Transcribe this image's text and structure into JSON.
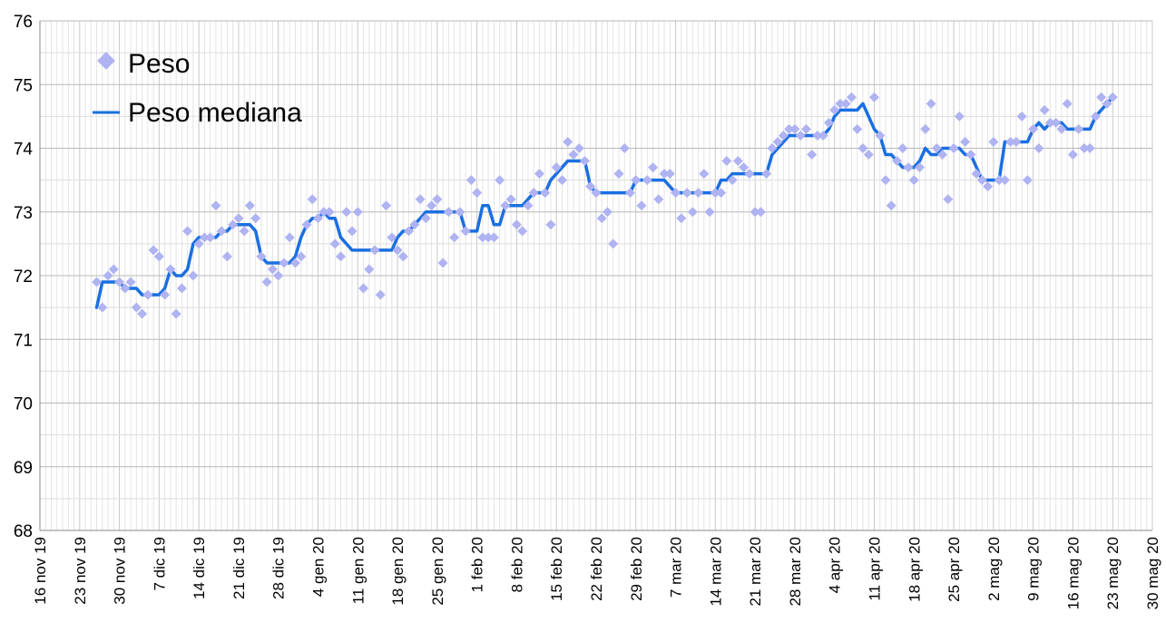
{
  "chart_data": {
    "type": "line",
    "title": "",
    "xlabel": "",
    "ylabel": "",
    "ylim": [
      68,
      76
    ],
    "yticks": [
      "68",
      "69",
      "70",
      "71",
      "72",
      "73",
      "74",
      "75",
      "76"
    ],
    "xlim": [
      "2019-11-16",
      "2020-05-30"
    ],
    "xticks": [
      "16 nov 19",
      "23 nov 19",
      "30 nov 19",
      "7 dic 19",
      "14 dic 19",
      "21 dic 19",
      "28 dic 19",
      "4 gen 20",
      "11 gen 20",
      "18 gen 20",
      "25 gen 20",
      "1 feb 20",
      "8 feb 20",
      "15 feb 20",
      "22 feb 20",
      "29 feb 20",
      "7 mar 20",
      "14 mar 20",
      "21 mar 20",
      "28 mar 20",
      "4 apr 20",
      "11 apr 20",
      "18 apr 20",
      "25 apr 20",
      "2 mag 20",
      "9 mag 20",
      "16 mag 20",
      "23 mag 20",
      "30 mag 20"
    ],
    "grid": true,
    "legend_position": "top-left",
    "series": [
      {
        "name": "Peso",
        "kind": "scatter",
        "marker": "diamond",
        "color": "#b0b3f2",
        "x": [
          "2019-11-26",
          "2019-11-27",
          "2019-11-28",
          "2019-11-29",
          "2019-11-30",
          "2019-12-01",
          "2019-12-02",
          "2019-12-03",
          "2019-12-04",
          "2019-12-05",
          "2019-12-06",
          "2019-12-07",
          "2019-12-08",
          "2019-12-09",
          "2019-12-10",
          "2019-12-11",
          "2019-12-12",
          "2019-12-13",
          "2019-12-14",
          "2019-12-15",
          "2019-12-16",
          "2019-12-17",
          "2019-12-18",
          "2019-12-19",
          "2019-12-20",
          "2019-12-21",
          "2019-12-22",
          "2019-12-23",
          "2019-12-24",
          "2019-12-25",
          "2019-12-26",
          "2019-12-27",
          "2019-12-28",
          "2019-12-29",
          "2019-12-30",
          "2019-12-31",
          "2020-01-01",
          "2020-01-02",
          "2020-01-03",
          "2020-01-04",
          "2020-01-05",
          "2020-01-06",
          "2020-01-07",
          "2020-01-08",
          "2020-01-09",
          "2020-01-10",
          "2020-01-11",
          "2020-01-12",
          "2020-01-13",
          "2020-01-14",
          "2020-01-15",
          "2020-01-16",
          "2020-01-17",
          "2020-01-18",
          "2020-01-19",
          "2020-01-20",
          "2020-01-21",
          "2020-01-22",
          "2020-01-23",
          "2020-01-24",
          "2020-01-25",
          "2020-01-26",
          "2020-01-27",
          "2020-01-28",
          "2020-01-29",
          "2020-01-30",
          "2020-01-31",
          "2020-02-01",
          "2020-02-02",
          "2020-02-03",
          "2020-02-04",
          "2020-02-05",
          "2020-02-06",
          "2020-02-07",
          "2020-02-08",
          "2020-02-09",
          "2020-02-10",
          "2020-02-11",
          "2020-02-12",
          "2020-02-13",
          "2020-02-14",
          "2020-02-15",
          "2020-02-16",
          "2020-02-17",
          "2020-02-18",
          "2020-02-19",
          "2020-02-20",
          "2020-02-21",
          "2020-02-22",
          "2020-02-23",
          "2020-02-24",
          "2020-02-25",
          "2020-02-26",
          "2020-02-27",
          "2020-02-28",
          "2020-02-29",
          "2020-03-01",
          "2020-03-02",
          "2020-03-03",
          "2020-03-04",
          "2020-03-05",
          "2020-03-06",
          "2020-03-07",
          "2020-03-08",
          "2020-03-09",
          "2020-03-10",
          "2020-03-11",
          "2020-03-12",
          "2020-03-13",
          "2020-03-14",
          "2020-03-15",
          "2020-03-16",
          "2020-03-17",
          "2020-03-18",
          "2020-03-19",
          "2020-03-20",
          "2020-03-21",
          "2020-03-22",
          "2020-03-23",
          "2020-03-24",
          "2020-03-25",
          "2020-03-26",
          "2020-03-27",
          "2020-03-28",
          "2020-03-29",
          "2020-03-30",
          "2020-03-31",
          "2020-04-01",
          "2020-04-02",
          "2020-04-03",
          "2020-04-04",
          "2020-04-05",
          "2020-04-06",
          "2020-04-07",
          "2020-04-08",
          "2020-04-09",
          "2020-04-10",
          "2020-04-11",
          "2020-04-12",
          "2020-04-13",
          "2020-04-14",
          "2020-04-15",
          "2020-04-16",
          "2020-04-17",
          "2020-04-18",
          "2020-04-19",
          "2020-04-20",
          "2020-04-21",
          "2020-04-22",
          "2020-04-23",
          "2020-04-24",
          "2020-04-25",
          "2020-04-26",
          "2020-04-27",
          "2020-04-28",
          "2020-04-29",
          "2020-04-30",
          "2020-05-01",
          "2020-05-02",
          "2020-05-03",
          "2020-05-04",
          "2020-05-05",
          "2020-05-06",
          "2020-05-07",
          "2020-05-08",
          "2020-05-09",
          "2020-05-10",
          "2020-05-11",
          "2020-05-12",
          "2020-05-13",
          "2020-05-14",
          "2020-05-15",
          "2020-05-16",
          "2020-05-17",
          "2020-05-18",
          "2020-05-19",
          "2020-05-20",
          "2020-05-21",
          "2020-05-22",
          "2020-05-23"
        ],
        "values": [
          71.9,
          71.5,
          72.0,
          72.1,
          71.9,
          71.8,
          71.9,
          71.5,
          71.4,
          71.7,
          72.4,
          72.3,
          71.7,
          72.1,
          71.4,
          71.8,
          72.7,
          72.0,
          72.5,
          72.6,
          72.6,
          73.1,
          72.7,
          72.3,
          72.8,
          72.9,
          72.7,
          73.1,
          72.9,
          72.3,
          71.9,
          72.1,
          72.0,
          72.2,
          72.6,
          72.2,
          72.3,
          72.8,
          73.2,
          72.9,
          73.0,
          73.0,
          72.5,
          72.3,
          73.0,
          72.7,
          73.0,
          71.8,
          72.1,
          72.4,
          71.7,
          73.1,
          72.6,
          72.4,
          72.3,
          72.7,
          72.8,
          73.2,
          72.9,
          73.1,
          73.2,
          72.2,
          73.0,
          72.6,
          73.0,
          72.7,
          73.5,
          73.3,
          72.6,
          72.6,
          72.6,
          73.5,
          73.1,
          73.2,
          72.8,
          72.7,
          73.1,
          73.3,
          73.6,
          73.3,
          72.8,
          73.7,
          73.5,
          74.1,
          73.9,
          74.0,
          73.8,
          73.4,
          73.3,
          72.9,
          73.0,
          72.5,
          73.6,
          74.0,
          73.3,
          73.5,
          73.1,
          73.5,
          73.7,
          73.2,
          73.6,
          73.6,
          73.3,
          72.9,
          73.3,
          73.0,
          73.3,
          73.6,
          73.0,
          73.3,
          73.3,
          73.8,
          73.5,
          73.8,
          73.7,
          73.6,
          73.0,
          73.0,
          73.6,
          74.0,
          74.1,
          74.2,
          74.3,
          74.3,
          74.2,
          74.3,
          73.9,
          74.2,
          74.2,
          74.4,
          74.6,
          74.7,
          74.7,
          74.8,
          74.3,
          74.0,
          73.9,
          74.8,
          74.2,
          73.5,
          73.1,
          73.8,
          74.0,
          73.7,
          73.5,
          73.7,
          74.3,
          74.7,
          74.0,
          73.9,
          73.2,
          74.0,
          74.5,
          74.1,
          73.9,
          73.6,
          73.5,
          73.4,
          74.1,
          73.5,
          73.5,
          74.1,
          74.1,
          74.5,
          73.5,
          74.3,
          74.0,
          74.6,
          74.4,
          74.4,
          74.3,
          74.7,
          73.9,
          74.3,
          74.0,
          74.0,
          74.5,
          74.8,
          74.7,
          74.8
        ]
      },
      {
        "name": "Peso mediana",
        "kind": "line",
        "color": "#1a6fe0",
        "x": [
          "2019-11-26",
          "2019-11-27",
          "2019-11-28",
          "2019-11-29",
          "2019-11-30",
          "2019-12-01",
          "2019-12-02",
          "2019-12-03",
          "2019-12-04",
          "2019-12-05",
          "2019-12-06",
          "2019-12-07",
          "2019-12-08",
          "2019-12-09",
          "2019-12-10",
          "2019-12-11",
          "2019-12-12",
          "2019-12-13",
          "2019-12-14",
          "2019-12-15",
          "2019-12-16",
          "2019-12-17",
          "2019-12-18",
          "2019-12-19",
          "2019-12-20",
          "2019-12-21",
          "2019-12-22",
          "2019-12-23",
          "2019-12-24",
          "2019-12-25",
          "2019-12-26",
          "2019-12-27",
          "2019-12-28",
          "2019-12-29",
          "2019-12-30",
          "2019-12-31",
          "2020-01-01",
          "2020-01-02",
          "2020-01-03",
          "2020-01-04",
          "2020-01-05",
          "2020-01-06",
          "2020-01-07",
          "2020-01-08",
          "2020-01-09",
          "2020-01-10",
          "2020-01-11",
          "2020-01-12",
          "2020-01-13",
          "2020-01-14",
          "2020-01-15",
          "2020-01-16",
          "2020-01-17",
          "2020-01-18",
          "2020-01-19",
          "2020-01-20",
          "2020-01-21",
          "2020-01-22",
          "2020-01-23",
          "2020-01-24",
          "2020-01-25",
          "2020-01-26",
          "2020-01-27",
          "2020-01-28",
          "2020-01-29",
          "2020-01-30",
          "2020-01-31",
          "2020-02-01",
          "2020-02-02",
          "2020-02-03",
          "2020-02-04",
          "2020-02-05",
          "2020-02-06",
          "2020-02-07",
          "2020-02-08",
          "2020-02-09",
          "2020-02-10",
          "2020-02-11",
          "2020-02-12",
          "2020-02-13",
          "2020-02-14",
          "2020-02-15",
          "2020-02-16",
          "2020-02-17",
          "2020-02-18",
          "2020-02-19",
          "2020-02-20",
          "2020-02-21",
          "2020-02-22",
          "2020-02-23",
          "2020-02-24",
          "2020-02-25",
          "2020-02-26",
          "2020-02-27",
          "2020-02-28",
          "2020-02-29",
          "2020-03-01",
          "2020-03-02",
          "2020-03-03",
          "2020-03-04",
          "2020-03-05",
          "2020-03-06",
          "2020-03-07",
          "2020-03-08",
          "2020-03-09",
          "2020-03-10",
          "2020-03-11",
          "2020-03-12",
          "2020-03-13",
          "2020-03-14",
          "2020-03-15",
          "2020-03-16",
          "2020-03-17",
          "2020-03-18",
          "2020-03-19",
          "2020-03-20",
          "2020-03-21",
          "2020-03-22",
          "2020-03-23",
          "2020-03-24",
          "2020-03-25",
          "2020-03-26",
          "2020-03-27",
          "2020-03-28",
          "2020-03-29",
          "2020-03-30",
          "2020-03-31",
          "2020-04-01",
          "2020-04-02",
          "2020-04-03",
          "2020-04-04",
          "2020-04-05",
          "2020-04-06",
          "2020-04-07",
          "2020-04-08",
          "2020-04-09",
          "2020-04-10",
          "2020-04-11",
          "2020-04-12",
          "2020-04-13",
          "2020-04-14",
          "2020-04-15",
          "2020-04-16",
          "2020-04-17",
          "2020-04-18",
          "2020-04-19",
          "2020-04-20",
          "2020-04-21",
          "2020-04-22",
          "2020-04-23",
          "2020-04-24",
          "2020-04-25",
          "2020-04-26",
          "2020-04-27",
          "2020-04-28",
          "2020-04-29",
          "2020-04-30",
          "2020-05-01",
          "2020-05-02",
          "2020-05-03",
          "2020-05-04",
          "2020-05-05",
          "2020-05-06",
          "2020-05-07",
          "2020-05-08",
          "2020-05-09",
          "2020-05-10",
          "2020-05-11",
          "2020-05-12",
          "2020-05-13",
          "2020-05-14",
          "2020-05-15",
          "2020-05-16",
          "2020-05-17",
          "2020-05-18",
          "2020-05-19",
          "2020-05-20",
          "2020-05-21",
          "2020-05-22",
          "2020-05-23"
        ],
        "values": [
          71.5,
          71.9,
          71.9,
          71.9,
          71.9,
          71.8,
          71.8,
          71.8,
          71.7,
          71.7,
          71.7,
          71.7,
          71.8,
          72.1,
          72.0,
          72.0,
          72.1,
          72.5,
          72.6,
          72.6,
          72.6,
          72.6,
          72.7,
          72.7,
          72.8,
          72.8,
          72.8,
          72.8,
          72.7,
          72.3,
          72.2,
          72.2,
          72.2,
          72.2,
          72.2,
          72.3,
          72.6,
          72.8,
          72.9,
          72.9,
          73.0,
          72.9,
          72.9,
          72.6,
          72.5,
          72.4,
          72.4,
          72.4,
          72.4,
          72.4,
          72.4,
          72.4,
          72.4,
          72.6,
          72.7,
          72.7,
          72.8,
          72.9,
          73.0,
          73.0,
          73.0,
          73.0,
          73.0,
          73.0,
          73.0,
          72.7,
          72.7,
          72.7,
          73.1,
          73.1,
          72.8,
          72.8,
          73.1,
          73.1,
          73.1,
          73.1,
          73.2,
          73.3,
          73.3,
          73.3,
          73.5,
          73.6,
          73.7,
          73.8,
          73.8,
          73.8,
          73.8,
          73.4,
          73.3,
          73.3,
          73.3,
          73.3,
          73.3,
          73.3,
          73.3,
          73.5,
          73.5,
          73.5,
          73.5,
          73.5,
          73.5,
          73.4,
          73.3,
          73.3,
          73.3,
          73.3,
          73.3,
          73.3,
          73.3,
          73.3,
          73.5,
          73.5,
          73.6,
          73.6,
          73.6,
          73.6,
          73.6,
          73.6,
          73.6,
          73.9,
          74.0,
          74.1,
          74.2,
          74.2,
          74.2,
          74.2,
          74.2,
          74.2,
          74.2,
          74.3,
          74.5,
          74.6,
          74.6,
          74.6,
          74.6,
          74.7,
          74.5,
          74.3,
          74.2,
          73.9,
          73.9,
          73.8,
          73.7,
          73.7,
          73.7,
          73.8,
          74.0,
          73.9,
          73.9,
          74.0,
          74.0,
          74.0,
          74.0,
          73.9,
          73.9,
          73.7,
          73.5,
          73.5,
          73.5,
          73.5,
          74.1,
          74.1,
          74.1,
          74.1,
          74.1,
          74.3,
          74.4,
          74.3,
          74.4,
          74.4,
          74.4,
          74.3,
          74.3,
          74.3,
          74.3,
          74.3,
          74.5,
          74.6,
          74.7,
          74.8
        ]
      }
    ]
  }
}
